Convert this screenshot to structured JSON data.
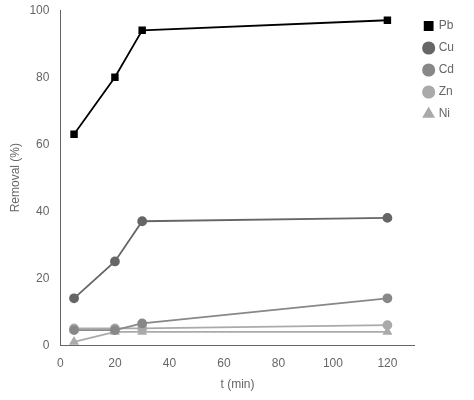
{
  "chart_data": {
    "type": "line",
    "x_label": "t (min)",
    "y_label": "Removal (%)",
    "x": [
      5,
      20,
      30,
      120
    ],
    "series": [
      {
        "name": "Pb",
        "color": "#000000",
        "marker": "square",
        "line_style": "solid",
        "values": [
          63,
          80,
          94,
          97
        ]
      },
      {
        "name": "Cu",
        "color": "#666666",
        "marker": "circle",
        "line_style": "solid",
        "values": [
          14,
          25,
          37,
          38
        ]
      },
      {
        "name": "Cd",
        "color": "#888888",
        "marker": "circle",
        "line_style": "solid",
        "values": [
          4.5,
          4.5,
          6.5,
          14
        ]
      },
      {
        "name": "Zn",
        "color": "#aaaaaa",
        "marker": "circle",
        "line_style": "solid",
        "values": [
          5,
          5,
          5,
          6
        ]
      },
      {
        "name": "Ni",
        "color": "#aaaaaa",
        "marker": "triangle",
        "line_style": "solid",
        "values": [
          1,
          4,
          4,
          4
        ]
      }
    ],
    "xlim": [
      0,
      130
    ],
    "ylim": [
      0,
      100
    ],
    "xticks": [
      0,
      20,
      40,
      60,
      80,
      100,
      120
    ],
    "yticks": [
      0,
      20,
      40,
      60,
      80,
      100
    ],
    "grid": false,
    "legend": "upper right"
  }
}
